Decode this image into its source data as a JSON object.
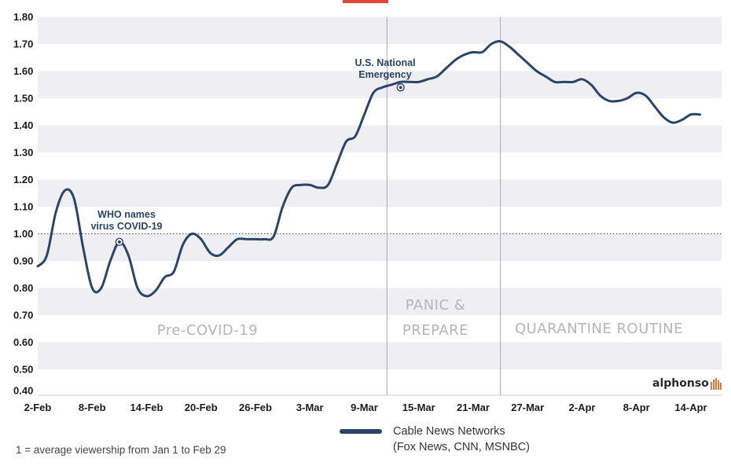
{
  "chart_data": {
    "type": "line",
    "ylim": [
      0.4,
      1.8
    ],
    "yticks": [
      "0.40",
      "0.50",
      "0.60",
      "0.70",
      "0.80",
      "0.90",
      "1.00",
      "1.10",
      "1.20",
      "1.30",
      "1.40",
      "1.50",
      "1.60",
      "1.70",
      "1.80"
    ],
    "x_tick_labels": [
      "2-Feb",
      "8-Feb",
      "14-Feb",
      "20-Feb",
      "26-Feb",
      "3-Mar",
      "9-Mar",
      "15-Mar",
      "21-Mar",
      "27-Mar",
      "2-Apr",
      "8-Apr",
      "14-Apr"
    ],
    "x_tick_days": [
      0,
      6,
      12,
      18,
      24,
      30,
      36,
      42,
      48,
      54,
      60,
      66,
      72
    ],
    "reference_line": 1.0,
    "vertical_lines_days": [
      38.5,
      51
    ],
    "series": [
      {
        "name": "Cable News Networks",
        "sub": "(Fox News, CNN, MSNBC)",
        "color": "#2b4468",
        "x_days": [
          0,
          1,
          2,
          3,
          4,
          5,
          6,
          7,
          8,
          9,
          10,
          11,
          12,
          13,
          14,
          15,
          16,
          17,
          18,
          19,
          20,
          21,
          22,
          23,
          24,
          25,
          26,
          27,
          28,
          29,
          30,
          31,
          32,
          33,
          34,
          35,
          36,
          37,
          38,
          39,
          40,
          41,
          42,
          43,
          44,
          45,
          46,
          47,
          48,
          49,
          50,
          51,
          52,
          53,
          54,
          55,
          56,
          57,
          58,
          59,
          60,
          61,
          62,
          63,
          64,
          65,
          66,
          67,
          68,
          69,
          70,
          71,
          72,
          73
        ],
        "values": [
          0.88,
          0.92,
          1.08,
          1.16,
          1.13,
          0.95,
          0.8,
          0.8,
          0.9,
          0.97,
          0.92,
          0.8,
          0.77,
          0.79,
          0.84,
          0.86,
          0.96,
          1.0,
          0.98,
          0.93,
          0.92,
          0.95,
          0.98,
          0.98,
          0.98,
          0.98,
          0.99,
          1.1,
          1.17,
          1.18,
          1.18,
          1.17,
          1.18,
          1.26,
          1.34,
          1.36,
          1.44,
          1.52,
          1.54,
          1.55,
          1.56,
          1.56,
          1.56,
          1.57,
          1.58,
          1.61,
          1.64,
          1.66,
          1.67,
          1.67,
          1.7,
          1.71,
          1.69,
          1.66,
          1.63,
          1.6,
          1.58,
          1.56,
          1.56,
          1.56,
          1.57,
          1.55,
          1.51,
          1.49,
          1.49,
          1.5,
          1.52,
          1.51,
          1.47,
          1.43,
          1.41,
          1.42,
          1.44,
          1.44
        ]
      }
    ],
    "annotations": [
      {
        "line1": "WHO names",
        "line2": "virus COVID-19",
        "x_day": 9,
        "y": 0.97
      },
      {
        "line1": "U.S. National",
        "line2": "Emergency",
        "x_day": 40,
        "y": 1.54
      }
    ],
    "phases": [
      {
        "label": "Pre-COVID-19"
      },
      {
        "line1": "PANIC &",
        "line2": "PREPARE"
      },
      {
        "label": "QUARANTINE ROUTINE"
      }
    ]
  },
  "legend": {
    "line1": "Cable News Networks",
    "line2": "(Fox News, CNN, MSNBC)"
  },
  "footnote": "1 = average viewership from Jan 1 to Feb 29",
  "brand": {
    "name": "alphonso",
    "color": "#e8763a"
  }
}
